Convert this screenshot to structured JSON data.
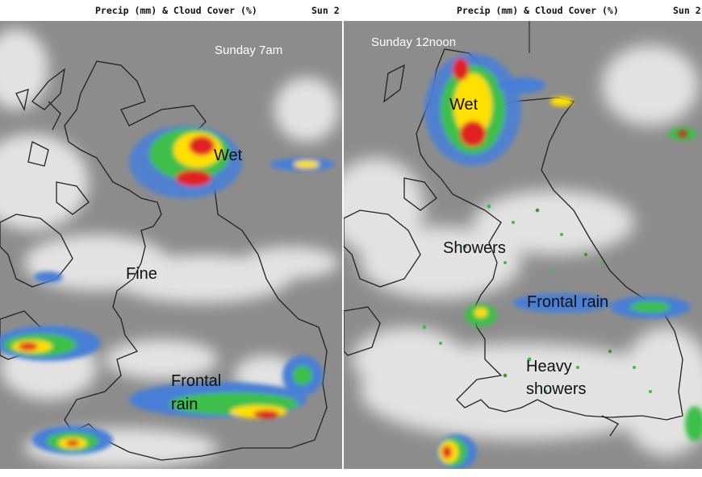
{
  "left": {
    "header_title": "Precip (mm) & Cloud Cover (%)",
    "header_day": "Sun 2",
    "time_label": "Sunday 7am",
    "labels": {
      "wet": "Wet",
      "fine": "Fine",
      "frontal_line1": "Frontal",
      "frontal_line2": "rain"
    }
  },
  "right": {
    "header_title": "Precip (mm) & Cloud Cover (%)",
    "header_day": "Sun 2",
    "time_label": "Sunday 12noon",
    "labels": {
      "wet": "Wet",
      "showers": "Showers",
      "frontal": "Frontal rain",
      "heavy_line1": "Heavy",
      "heavy_line2": "showers"
    }
  },
  "colors": {
    "background": "#8c8c8c",
    "cloud": "#f2f2f2",
    "coast": "#222222",
    "light_rain": "#4a7fd6",
    "moderate_rain": "#3cbf4a",
    "heavy_rain": "#ffe000",
    "intense_rain": "#e02020"
  }
}
